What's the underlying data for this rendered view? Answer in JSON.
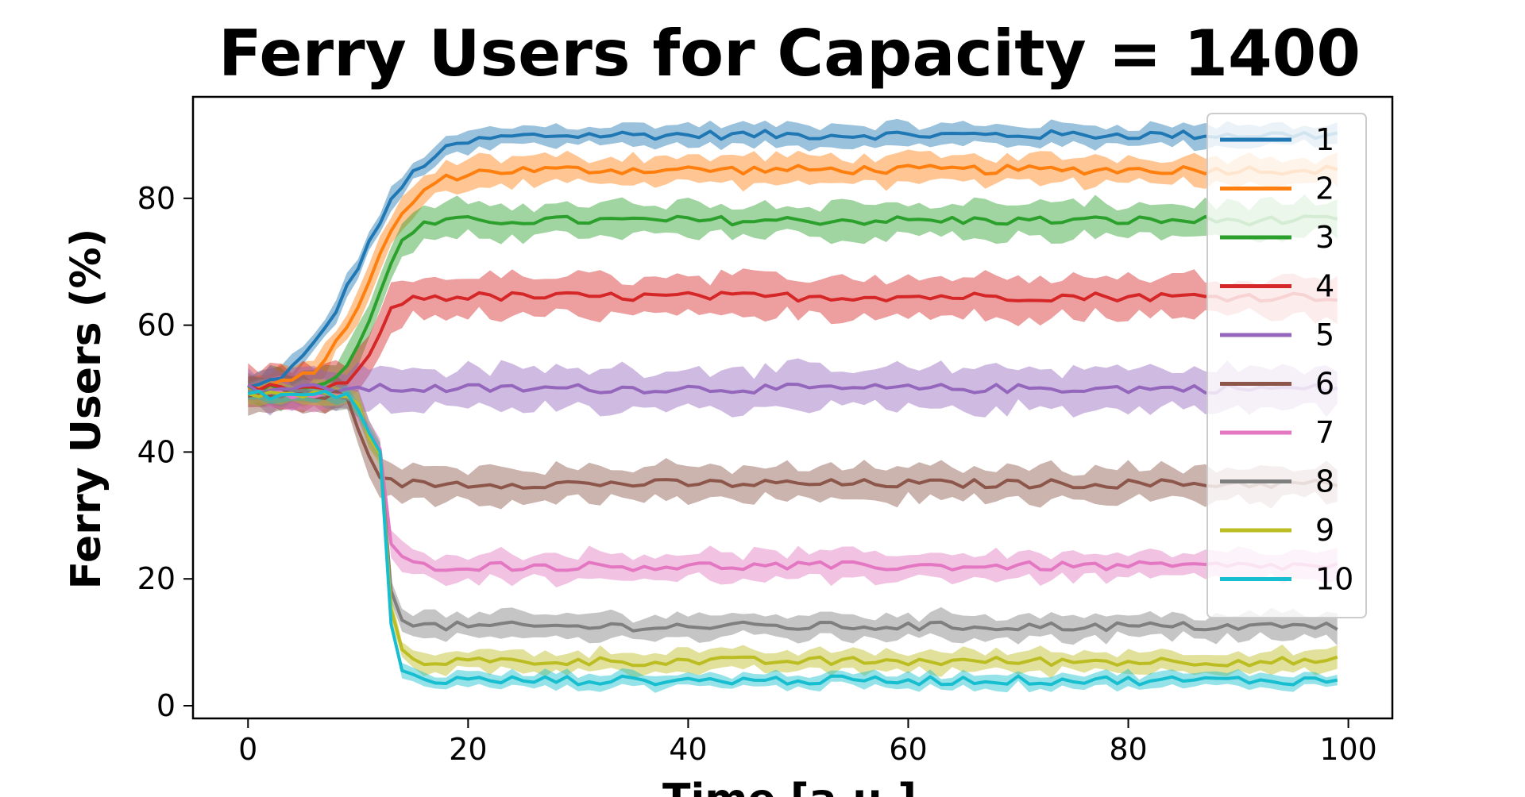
{
  "chart_data": {
    "type": "line",
    "title": "Ferry Users for Capacity = 1400",
    "xlabel": "Time [a.u.]",
    "ylabel": "Ferry Users (%)",
    "xlim": [
      -5,
      104
    ],
    "ylim": [
      -2,
      96
    ],
    "xticks": [
      0,
      20,
      40,
      60,
      80,
      100
    ],
    "yticks": [
      0,
      20,
      40,
      60,
      80
    ],
    "x_range": [
      0,
      99
    ],
    "grid": false,
    "legend_position": "top-right",
    "series": [
      {
        "name": "1",
        "color": "#1f77b4",
        "start": 50,
        "plateau": 90,
        "shape": "sigmoid",
        "midpoint": 10,
        "rate": 0.35,
        "band": 1.5
      },
      {
        "name": "2",
        "color": "#ff7f0e",
        "start": 50,
        "plateau": 84.5,
        "shape": "sigmoid",
        "midpoint": 11,
        "rate": 0.45,
        "band": 2.0
      },
      {
        "name": "3",
        "color": "#2ca02c",
        "start": 50,
        "plateau": 76.5,
        "shape": "sigmoid",
        "midpoint": 11.5,
        "rate": 0.75,
        "band": 2.5
      },
      {
        "name": "4",
        "color": "#d62728",
        "start": 50,
        "plateau": 64.5,
        "shape": "sigmoid",
        "midpoint": 11.5,
        "rate": 1.1,
        "band": 3.0
      },
      {
        "name": "5",
        "color": "#9467bd",
        "start": 50,
        "plateau": 50,
        "shape": "flat",
        "band": 3.0
      },
      {
        "name": "6",
        "color": "#8c564b",
        "start": 50,
        "plateau": 35,
        "shape": "drop",
        "drop_at": 11,
        "band": 2.5
      },
      {
        "name": "7",
        "color": "#e377c2",
        "start": 50,
        "plateau": 22,
        "shape": "drop",
        "drop_at": 12,
        "band": 2.0
      },
      {
        "name": "8",
        "color": "#7f7f7f",
        "start": 50,
        "plateau": 12.5,
        "shape": "drop",
        "drop_at": 12,
        "band": 1.8
      },
      {
        "name": "9",
        "color": "#bcbd22",
        "start": 50,
        "plateau": 7,
        "shape": "drop",
        "drop_at": 12,
        "band": 1.5
      },
      {
        "name": "10",
        "color": "#17becf",
        "start": 50,
        "plateau": 4,
        "shape": "drop",
        "drop_at": 12,
        "band": 1.0
      }
    ]
  }
}
